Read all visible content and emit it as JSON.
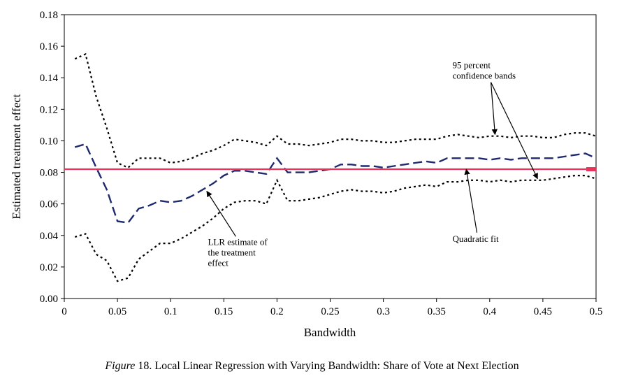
{
  "chart_data": {
    "type": "line",
    "xlabel": "Bandwidth",
    "ylabel": "Estimated treatment effect",
    "xlim": [
      0,
      0.5
    ],
    "ylim": [
      0,
      0.18
    ],
    "x_ticks": [
      "0",
      "0.05",
      "0.1",
      "0.15",
      "0.2",
      "0.25",
      "0.3",
      "0.35",
      "0.4",
      "0.45",
      "0.5"
    ],
    "y_ticks": [
      "0.00",
      "0.02",
      "0.04",
      "0.06",
      "0.08",
      "0.10",
      "0.12",
      "0.14",
      "0.16",
      "0.18"
    ],
    "grid": false,
    "legend": "none",
    "series": [
      {
        "key": "upper_band",
        "style": "dotted",
        "color": "#000000",
        "points": [
          [
            0.01,
            0.152
          ],
          [
            0.02,
            0.155
          ],
          [
            0.03,
            0.128
          ],
          [
            0.04,
            0.108
          ],
          [
            0.05,
            0.086
          ],
          [
            0.06,
            0.083
          ],
          [
            0.07,
            0.089
          ],
          [
            0.08,
            0.089
          ],
          [
            0.09,
            0.089
          ],
          [
            0.1,
            0.086
          ],
          [
            0.11,
            0.087
          ],
          [
            0.12,
            0.089
          ],
          [
            0.13,
            0.092
          ],
          [
            0.14,
            0.094
          ],
          [
            0.15,
            0.097
          ],
          [
            0.16,
            0.101
          ],
          [
            0.17,
            0.1
          ],
          [
            0.18,
            0.099
          ],
          [
            0.19,
            0.097
          ],
          [
            0.2,
            0.103
          ],
          [
            0.21,
            0.098
          ],
          [
            0.22,
            0.098
          ],
          [
            0.23,
            0.097
          ],
          [
            0.24,
            0.098
          ],
          [
            0.25,
            0.099
          ],
          [
            0.26,
            0.101
          ],
          [
            0.27,
            0.101
          ],
          [
            0.28,
            0.1
          ],
          [
            0.29,
            0.1
          ],
          [
            0.3,
            0.099
          ],
          [
            0.31,
            0.099
          ],
          [
            0.32,
            0.1
          ],
          [
            0.33,
            0.101
          ],
          [
            0.34,
            0.101
          ],
          [
            0.35,
            0.101
          ],
          [
            0.36,
            0.103
          ],
          [
            0.37,
            0.104
          ],
          [
            0.38,
            0.103
          ],
          [
            0.39,
            0.102
          ],
          [
            0.4,
            0.103
          ],
          [
            0.41,
            0.103
          ],
          [
            0.42,
            0.102
          ],
          [
            0.43,
            0.103
          ],
          [
            0.44,
            0.103
          ],
          [
            0.45,
            0.102
          ],
          [
            0.46,
            0.102
          ],
          [
            0.47,
            0.104
          ],
          [
            0.48,
            0.105
          ],
          [
            0.49,
            0.105
          ],
          [
            0.5,
            0.103
          ]
        ]
      },
      {
        "key": "llr_estimate",
        "style": "dashed",
        "color": "#1f2a6e",
        "points": [
          [
            0.01,
            0.096
          ],
          [
            0.02,
            0.098
          ],
          [
            0.03,
            0.083
          ],
          [
            0.04,
            0.069
          ],
          [
            0.05,
            0.049
          ],
          [
            0.06,
            0.048
          ],
          [
            0.07,
            0.057
          ],
          [
            0.08,
            0.059
          ],
          [
            0.09,
            0.062
          ],
          [
            0.1,
            0.061
          ],
          [
            0.11,
            0.062
          ],
          [
            0.12,
            0.065
          ],
          [
            0.13,
            0.069
          ],
          [
            0.14,
            0.073
          ],
          [
            0.15,
            0.078
          ],
          [
            0.16,
            0.081
          ],
          [
            0.17,
            0.081
          ],
          [
            0.18,
            0.08
          ],
          [
            0.19,
            0.079
          ],
          [
            0.2,
            0.089
          ],
          [
            0.21,
            0.08
          ],
          [
            0.22,
            0.08
          ],
          [
            0.23,
            0.08
          ],
          [
            0.24,
            0.081
          ],
          [
            0.25,
            0.082
          ],
          [
            0.26,
            0.085
          ],
          [
            0.27,
            0.085
          ],
          [
            0.28,
            0.084
          ],
          [
            0.29,
            0.084
          ],
          [
            0.3,
            0.083
          ],
          [
            0.31,
            0.084
          ],
          [
            0.32,
            0.085
          ],
          [
            0.33,
            0.086
          ],
          [
            0.34,
            0.087
          ],
          [
            0.35,
            0.086
          ],
          [
            0.36,
            0.089
          ],
          [
            0.37,
            0.089
          ],
          [
            0.38,
            0.089
          ],
          [
            0.39,
            0.089
          ],
          [
            0.4,
            0.088
          ],
          [
            0.41,
            0.089
          ],
          [
            0.42,
            0.088
          ],
          [
            0.43,
            0.089
          ],
          [
            0.44,
            0.089
          ],
          [
            0.45,
            0.089
          ],
          [
            0.46,
            0.089
          ],
          [
            0.47,
            0.09
          ],
          [
            0.48,
            0.091
          ],
          [
            0.49,
            0.092
          ],
          [
            0.5,
            0.089
          ]
        ]
      },
      {
        "key": "lower_band",
        "style": "dotted",
        "color": "#000000",
        "points": [
          [
            0.01,
            0.039
          ],
          [
            0.02,
            0.041
          ],
          [
            0.03,
            0.028
          ],
          [
            0.04,
            0.024
          ],
          [
            0.05,
            0.011
          ],
          [
            0.06,
            0.013
          ],
          [
            0.07,
            0.025
          ],
          [
            0.08,
            0.03
          ],
          [
            0.09,
            0.035
          ],
          [
            0.1,
            0.035
          ],
          [
            0.11,
            0.038
          ],
          [
            0.12,
            0.042
          ],
          [
            0.13,
            0.046
          ],
          [
            0.14,
            0.051
          ],
          [
            0.15,
            0.057
          ],
          [
            0.16,
            0.061
          ],
          [
            0.17,
            0.062
          ],
          [
            0.18,
            0.062
          ],
          [
            0.19,
            0.06
          ],
          [
            0.2,
            0.075
          ],
          [
            0.21,
            0.062
          ],
          [
            0.22,
            0.062
          ],
          [
            0.23,
            0.063
          ],
          [
            0.24,
            0.064
          ],
          [
            0.25,
            0.066
          ],
          [
            0.26,
            0.068
          ],
          [
            0.27,
            0.069
          ],
          [
            0.28,
            0.068
          ],
          [
            0.29,
            0.068
          ],
          [
            0.3,
            0.067
          ],
          [
            0.31,
            0.068
          ],
          [
            0.32,
            0.07
          ],
          [
            0.33,
            0.071
          ],
          [
            0.34,
            0.072
          ],
          [
            0.35,
            0.071
          ],
          [
            0.36,
            0.074
          ],
          [
            0.37,
            0.074
          ],
          [
            0.38,
            0.075
          ],
          [
            0.39,
            0.075
          ],
          [
            0.4,
            0.074
          ],
          [
            0.41,
            0.075
          ],
          [
            0.42,
            0.074
          ],
          [
            0.43,
            0.075
          ],
          [
            0.44,
            0.075
          ],
          [
            0.45,
            0.075
          ],
          [
            0.46,
            0.076
          ],
          [
            0.47,
            0.077
          ],
          [
            0.48,
            0.078
          ],
          [
            0.49,
            0.078
          ],
          [
            0.5,
            0.076
          ]
        ]
      },
      {
        "key": "quadratic_fit",
        "style": "solid",
        "color": "#e8335a",
        "points": [
          [
            0.0,
            0.082
          ],
          [
            0.5,
            0.082
          ]
        ]
      }
    ],
    "annotations": [
      {
        "key": "bands",
        "lines": [
          "95 percent",
          "confidence bands"
        ],
        "anchor": [
          0.365,
          0.146
        ],
        "targets": [
          [
            0.405,
            0.104
          ],
          [
            0.445,
            0.076
          ]
        ]
      },
      {
        "key": "llr",
        "lines": [
          "LLR estimate of",
          "the treatment",
          "effect"
        ],
        "anchor": [
          0.135,
          0.034
        ],
        "targets": [
          [
            0.134,
            0.068
          ]
        ]
      },
      {
        "key": "quad",
        "lines": [
          "Quadratic fit"
        ],
        "anchor": [
          0.365,
          0.036
        ],
        "targets": [
          [
            0.378,
            0.082
          ]
        ]
      }
    ]
  },
  "caption": {
    "figure_word": "Figure",
    "text": " 18. Local Linear Regression with Varying Bandwidth: Share of Vote at Next Election"
  }
}
